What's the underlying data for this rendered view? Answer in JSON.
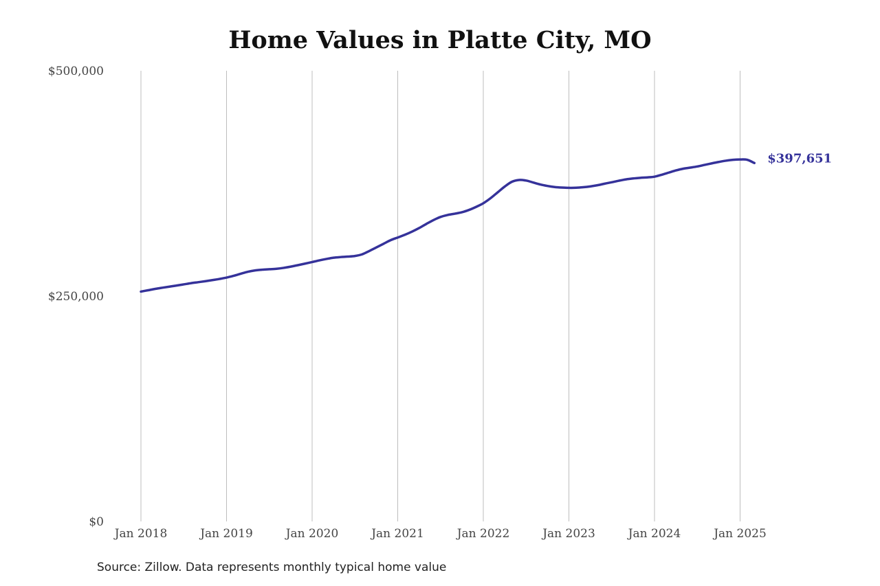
{
  "chart_data": {
    "type": "line",
    "title": "Home Values in Platte City, MO",
    "xlabel": "",
    "ylabel": "",
    "x_tick_labels": [
      "Jan 2018",
      "Jan 2019",
      "Jan 2020",
      "Jan 2021",
      "Jan 2022",
      "Jan 2023",
      "Jan 2024",
      "Jan 2025"
    ],
    "y_tick_labels": [
      "$0",
      "$250,000",
      "$500,000"
    ],
    "y_ticks": [
      0,
      250000,
      500000
    ],
    "ylim": [
      0,
      500000
    ],
    "x_range": [
      "2018-01",
      "2025-03"
    ],
    "grid": "vertical at each January",
    "legend": "none",
    "line_color": "#35329a",
    "end_label": "$397,651",
    "series": [
      {
        "x": [
          "2018-01",
          "2018-02",
          "2018-03",
          "2018-04",
          "2018-05",
          "2018-06",
          "2018-07",
          "2018-08",
          "2018-09",
          "2018-10",
          "2018-11",
          "2018-12",
          "2019-01",
          "2019-02",
          "2019-03",
          "2019-04",
          "2019-05",
          "2019-06",
          "2019-07",
          "2019-08",
          "2019-09",
          "2019-10",
          "2019-11",
          "2019-12",
          "2020-01",
          "2020-02",
          "2020-03",
          "2020-04",
          "2020-05",
          "2020-06",
          "2020-07",
          "2020-08",
          "2020-09",
          "2020-10",
          "2020-11",
          "2020-12",
          "2021-01",
          "2021-02",
          "2021-03",
          "2021-04",
          "2021-05",
          "2021-06",
          "2021-07",
          "2021-08",
          "2021-09",
          "2021-10",
          "2021-11",
          "2021-12",
          "2022-01",
          "2022-02",
          "2022-03",
          "2022-04",
          "2022-05",
          "2022-06",
          "2022-07",
          "2022-08",
          "2022-09",
          "2022-10",
          "2022-11",
          "2022-12",
          "2023-01",
          "2023-02",
          "2023-03",
          "2023-04",
          "2023-05",
          "2023-06",
          "2023-07",
          "2023-08",
          "2023-09",
          "2023-10",
          "2023-11",
          "2023-12",
          "2024-01",
          "2024-02",
          "2024-03",
          "2024-04",
          "2024-05",
          "2024-06",
          "2024-07",
          "2024-08",
          "2024-09",
          "2024-10",
          "2024-11",
          "2024-12",
          "2025-01",
          "2025-02",
          "2025-03"
        ],
        "values": [
          255000,
          256500,
          258000,
          259300,
          260500,
          261700,
          263000,
          264300,
          265400,
          266500,
          267700,
          269000,
          270500,
          272500,
          274800,
          277000,
          278500,
          279300,
          279800,
          280300,
          281300,
          282700,
          284300,
          286000,
          287800,
          289600,
          291200,
          292600,
          293300,
          293800,
          294500,
          296300,
          300000,
          304000,
          308000,
          312000,
          315000,
          318000,
          321500,
          325500,
          330000,
          334300,
          337800,
          340000,
          341400,
          343000,
          345600,
          349000,
          353000,
          358500,
          365000,
          371500,
          376800,
          378800,
          378200,
          376000,
          373800,
          372200,
          371000,
          370400,
          370100,
          370200,
          370800,
          371700,
          373000,
          374700,
          376300,
          378000,
          379500,
          380500,
          381200,
          381700,
          382500,
          384600,
          387000,
          389400,
          391300,
          392500,
          393800,
          395500,
          397200,
          398800,
          400200,
          401200,
          401600,
          401200,
          397651
        ]
      }
    ]
  },
  "source_note": "Source: Zillow. Data represents monthly typical home value"
}
